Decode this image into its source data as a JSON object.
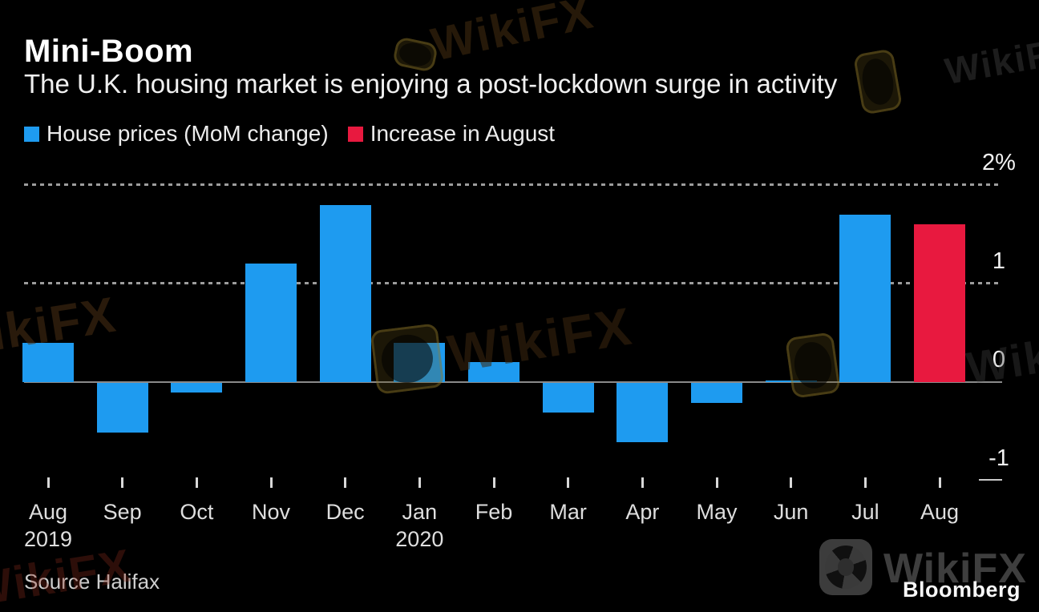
{
  "header": {
    "title": "Mini-Boom",
    "subtitle": "The U.K. housing market is enjoying a post-lockdown surge in activity"
  },
  "legend": [
    {
      "label": "House prices (MoM change)",
      "color": "#1e9bf0"
    },
    {
      "label": "Increase in August",
      "color": "#e8193f"
    }
  ],
  "chart_data": {
    "type": "bar",
    "title": "Mini-Boom",
    "subtitle": "The U.K. housing market is enjoying a post-lockdown surge in activity",
    "unit": "%",
    "categories": [
      "Aug",
      "Sep",
      "Oct",
      "Nov",
      "Dec",
      "Jan",
      "Feb",
      "Mar",
      "Apr",
      "May",
      "Jun",
      "Jul",
      "Aug"
    ],
    "year_labels": {
      "0": "2019",
      "5": "2020"
    },
    "series": [
      {
        "name": "House prices (MoM change)",
        "color": "#1e9bf0",
        "values": [
          0.4,
          -0.5,
          -0.1,
          1.2,
          1.8,
          0.4,
          0.2,
          -0.3,
          -0.6,
          -0.2,
          0.02,
          1.7,
          null
        ]
      },
      {
        "name": "Increase in August",
        "color": "#e8193f",
        "values": [
          null,
          null,
          null,
          null,
          null,
          null,
          null,
          null,
          null,
          null,
          null,
          null,
          1.6
        ]
      }
    ],
    "ylim": [
      -1,
      2
    ],
    "yticks": [
      {
        "value": 2,
        "label": "2%"
      },
      {
        "value": 1,
        "label": "1"
      },
      {
        "value": 0,
        "label": "0"
      },
      {
        "value": -1,
        "label": "-1"
      }
    ],
    "grid": "horizontal dotted lines at 1 and 2, solid gray zero axis, short end tick at -1",
    "legend_position": "top-left"
  },
  "footer": {
    "source": "Source Halifax",
    "brand": "Bloomberg"
  },
  "watermark": {
    "text": "WikiFX"
  }
}
